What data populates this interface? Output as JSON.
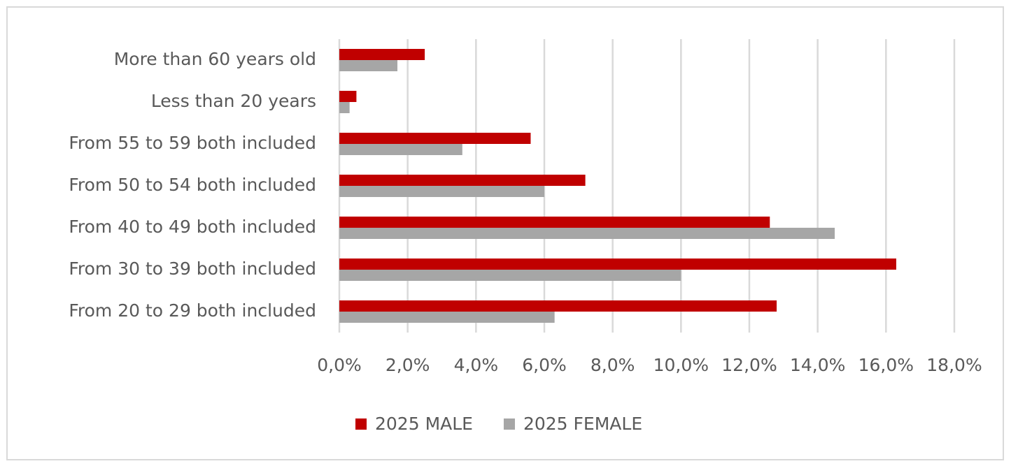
{
  "chart_data": {
    "type": "bar",
    "orientation": "horizontal",
    "categories": [
      "More than 60 years old",
      "Less than 20 years",
      "From 55 to 59 both included",
      "From 50 to 54 both included",
      "From 40 to 49 both included",
      "From 30 to 39 both included",
      "From 20 to 29 both included"
    ],
    "series": [
      {
        "name": "2025 MALE",
        "color": "#c00000",
        "values": [
          2.5,
          0.5,
          5.6,
          7.2,
          12.6,
          16.3,
          12.8
        ]
      },
      {
        "name": "2025 FEMALE",
        "color": "#a6a6a6",
        "values": [
          1.7,
          0.3,
          3.6,
          6.0,
          14.5,
          10.0,
          6.3
        ]
      }
    ],
    "xlim": [
      0,
      18
    ],
    "xticks": [
      {
        "value": 0,
        "label": "0,0%"
      },
      {
        "value": 2,
        "label": "2,0%"
      },
      {
        "value": 4,
        "label": "4,0%"
      },
      {
        "value": 6,
        "label": "6,0%"
      },
      {
        "value": 8,
        "label": "8,0%"
      },
      {
        "value": 10,
        "label": "10,0%"
      },
      {
        "value": 12,
        "label": "12,0%"
      },
      {
        "value": 14,
        "label": "14,0%"
      },
      {
        "value": 16,
        "label": "16,0%"
      },
      {
        "value": 18,
        "label": "18,0%"
      }
    ],
    "grid": true,
    "legend": "bottom"
  }
}
